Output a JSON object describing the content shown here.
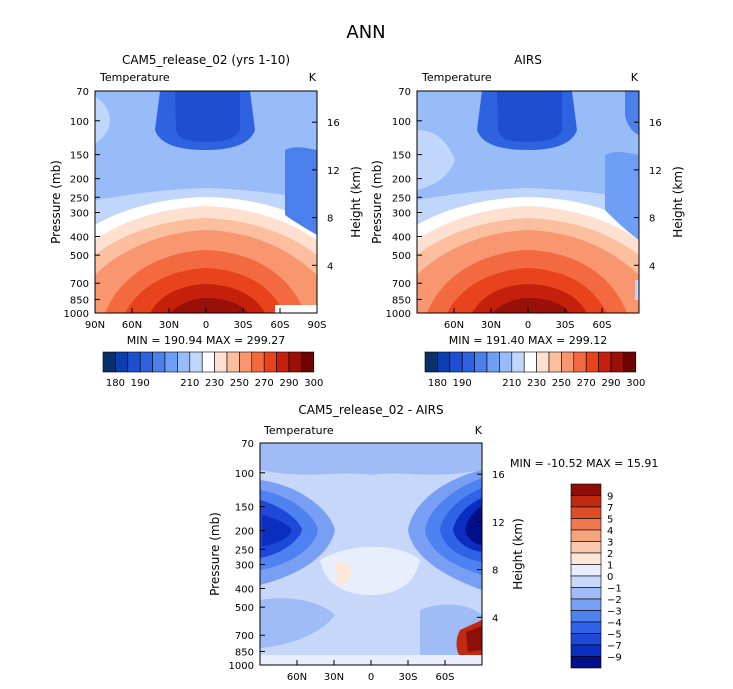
{
  "figure_title": "ANN",
  "colors": {
    "abs_scale": [
      "#08306b",
      "#0b3fb0",
      "#1f4fd0",
      "#2e62e0",
      "#4a7fec",
      "#6f9ff4",
      "#98bcf8",
      "#c0d6fb",
      "#ffffff",
      "#fde0cf",
      "#fbbfa0",
      "#f89670",
      "#f46a40",
      "#e8431c",
      "#c4200b",
      "#991008",
      "#6e0404"
    ],
    "diff_scale": [
      "#00108a",
      "#0a2fc0",
      "#1e48d8",
      "#2e63e8",
      "#4d82f0",
      "#789ff4",
      "#9fbcf7",
      "#c6d7fa",
      "#e8eefc",
      "#fce6d8",
      "#f9c8ae",
      "#f5a47e",
      "#ef7850",
      "#df4d26",
      "#bf2a10",
      "#8e0f08"
    ]
  },
  "chart_data": [
    {
      "type": "heatmap",
      "title": "CAM5_release_02 (yrs 1-10)",
      "left_label": "Temperature",
      "units": "K",
      "ylabel": "Pressure (mb)",
      "y2label": "Height (km)",
      "pressure_ticks": [
        "70",
        "100",
        "150",
        "200",
        "250",
        "300",
        "400",
        "500",
        "700",
        "850",
        "1000"
      ],
      "height_ticks": [
        "4",
        "8",
        "12",
        "16"
      ],
      "lat_ticks": [
        "90N",
        "60N",
        "30N",
        "0",
        "30S",
        "60S",
        "90S"
      ],
      "minmax": "MIN = 190.94   MAX = 299.27",
      "colorbar_labels": [
        "180",
        "190",
        "210",
        "230",
        "250",
        "270",
        "290",
        "300"
      ],
      "levels": [
        180,
        185,
        190,
        195,
        200,
        205,
        210,
        220,
        230,
        240,
        250,
        260,
        270,
        280,
        290,
        295,
        300
      ]
    },
    {
      "type": "heatmap",
      "title": "AIRS",
      "left_label": "Temperature",
      "units": "K",
      "ylabel": "Pressure (mb)",
      "y2label": "Height (km)",
      "pressure_ticks": [
        "70",
        "100",
        "150",
        "200",
        "250",
        "300",
        "400",
        "500",
        "700",
        "850",
        "1000"
      ],
      "height_ticks": [
        "4",
        "8",
        "12",
        "16"
      ],
      "lat_ticks": [
        "60N",
        "30N",
        "0",
        "30S",
        "60S"
      ],
      "minmax": "MIN = 191.40   MAX = 299.12",
      "colorbar_labels": [
        "180",
        "190",
        "210",
        "230",
        "250",
        "270",
        "290",
        "300"
      ],
      "levels": [
        180,
        185,
        190,
        195,
        200,
        205,
        210,
        220,
        230,
        240,
        250,
        260,
        270,
        280,
        290,
        295,
        300
      ]
    },
    {
      "type": "heatmap",
      "title": "CAM5_release_02 - AIRS",
      "left_label": "Temperature",
      "units": "K",
      "ylabel": "Pressure (mb)",
      "y2label": "Height (km)",
      "pressure_ticks": [
        "70",
        "100",
        "150",
        "200",
        "250",
        "300",
        "400",
        "500",
        "700",
        "850",
        "1000"
      ],
      "height_ticks": [
        "4",
        "8",
        "12",
        "16"
      ],
      "lat_ticks": [
        "60N",
        "30N",
        "0",
        "30S",
        "60S"
      ],
      "minmax": "MIN = -10.52   MAX =  15.91",
      "colorbar_labels": [
        "9",
        "7",
        "5",
        "4",
        "3",
        "2",
        "1",
        "0",
        "-1",
        "-2",
        "-3",
        "-4",
        "-5",
        "-7",
        "-9"
      ],
      "levels": [
        -9,
        -7,
        -5,
        -4,
        -3,
        -2,
        -1,
        0,
        1,
        2,
        3,
        4,
        5,
        7,
        9
      ]
    }
  ]
}
